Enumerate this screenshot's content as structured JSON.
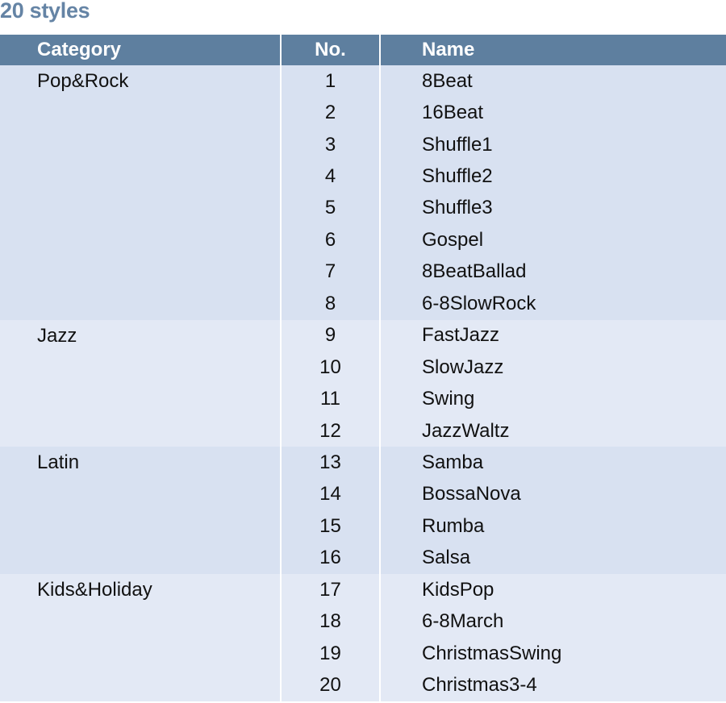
{
  "title": "20 styles",
  "headers": {
    "category": "Category",
    "no": "No.",
    "name": "Name"
  },
  "colors": {
    "header_bg": "#5e7f9f",
    "title": "#6584a5",
    "group_a": "#d8e1f1",
    "group_b": "#e3e9f5"
  },
  "groups": [
    {
      "category": "Pop&Rock",
      "rows": [
        {
          "no": "1",
          "name": "8Beat"
        },
        {
          "no": "2",
          "name": "16Beat"
        },
        {
          "no": "3",
          "name": "Shuffle1"
        },
        {
          "no": "4",
          "name": "Shuffle2"
        },
        {
          "no": "5",
          "name": "Shuffle3"
        },
        {
          "no": "6",
          "name": "Gospel"
        },
        {
          "no": "7",
          "name": "8BeatBallad"
        },
        {
          "no": "8",
          "name": "6-8SlowRock"
        }
      ]
    },
    {
      "category": "Jazz",
      "rows": [
        {
          "no": "9",
          "name": "FastJazz"
        },
        {
          "no": "10",
          "name": "SlowJazz"
        },
        {
          "no": "11",
          "name": "Swing"
        },
        {
          "no": "12",
          "name": "JazzWaltz"
        }
      ]
    },
    {
      "category": "Latin",
      "rows": [
        {
          "no": "13",
          "name": "Samba"
        },
        {
          "no": "14",
          "name": "BossaNova"
        },
        {
          "no": "15",
          "name": "Rumba"
        },
        {
          "no": "16",
          "name": "Salsa"
        }
      ]
    },
    {
      "category": "Kids&Holiday",
      "rows": [
        {
          "no": "17",
          "name": "KidsPop"
        },
        {
          "no": "18",
          "name": "6-8March"
        },
        {
          "no": "19",
          "name": "ChristmasSwing"
        },
        {
          "no": "20",
          "name": "Christmas3-4"
        }
      ]
    }
  ]
}
